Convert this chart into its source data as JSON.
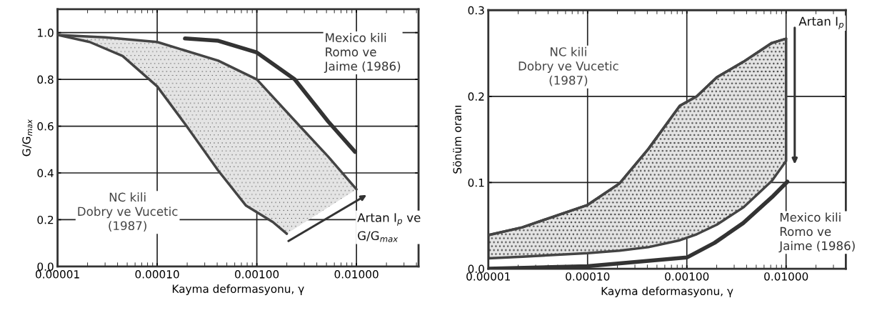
{
  "chart_data": [
    {
      "type": "line",
      "xlabel": "Kayma deformasyonu, γ",
      "ylabel": "G/G$_{max}$",
      "log": "x",
      "grid": true,
      "legend": false,
      "marker": "none",
      "line_style": "solid",
      "xlim": [
        1e-05,
        0.042
      ],
      "ylim": [
        0.0,
        1.1
      ],
      "xticks": [
        {
          "value": 1e-05,
          "label": "0.00001"
        },
        {
          "value": 0.0001,
          "label": "0.00010"
        },
        {
          "value": 0.001,
          "label": "0.00100"
        },
        {
          "value": 0.01,
          "label": "0.01000"
        }
      ],
      "yticks": [
        {
          "value": 0.0,
          "label": "0.0"
        },
        {
          "value": 0.2,
          "label": "0.2"
        },
        {
          "value": 0.4,
          "label": "0.4"
        },
        {
          "value": 0.6,
          "label": "0.6"
        },
        {
          "value": 0.8,
          "label": "0.8"
        },
        {
          "value": 1.0,
          "label": "1.0"
        }
      ],
      "series": [
        {
          "name": "NC kili\nDobry ve Vucetic\n(1987)",
          "color": "#444444",
          "x": [
            1e-05,
            3e-05,
            0.0001,
            0.00041,
            0.001,
            0.0027,
            0.0052,
            0.01
          ],
          "values": [
            0.99,
            0.98,
            0.96,
            0.88,
            0.8,
            0.6,
            0.47,
            0.33
          ]
        },
        {
          "color": "#444444",
          "x": [
            1e-05,
            2.1e-05,
            4.5e-05,
            0.0001,
            0.00019,
            0.00041,
            0.00078,
            0.00145,
            0.002
          ],
          "values": [
            0.99,
            0.96,
            0.9,
            0.77,
            0.61,
            0.41,
            0.26,
            0.19,
            0.14
          ]
        },
        {
          "name": "Mexico kili\nRomo ve\nJaime (1986)",
          "color": "#333333",
          "x": [
            0.00019,
            0.00041,
            0.001,
            0.0024,
            0.0052,
            0.0097
          ],
          "values": [
            0.975,
            0.965,
            0.915,
            0.8,
            0.62,
            0.49
          ]
        }
      ],
      "annotations": [
        "Artan I$_{p}$ ve\nG/G$_{max}$"
      ]
    },
    {
      "type": "line",
      "xlabel": "Kayma deformasyonu, γ",
      "ylabel": "Sönüm oranı",
      "log": "x",
      "grid": true,
      "legend": false,
      "marker": "none",
      "line_style": "solid",
      "xlim": [
        1e-05,
        0.04
      ],
      "ylim": [
        0.0,
        0.3
      ],
      "xticks": [
        {
          "value": 1e-05,
          "label": "0.00001"
        },
        {
          "value": 0.0001,
          "label": "0.00010"
        },
        {
          "value": 0.001,
          "label": "0.00100"
        },
        {
          "value": 0.01,
          "label": "0.01000"
        }
      ],
      "yticks": [
        {
          "value": 0.0,
          "label": "0.0"
        },
        {
          "value": 0.1,
          "label": "0.1"
        },
        {
          "value": 0.2,
          "label": "0.2"
        },
        {
          "value": 0.3,
          "label": "0.3"
        }
      ],
      "series": [
        {
          "name": "NC kili\nDobry ve Vucetic\n(1987)",
          "color": "#444444",
          "x": [
            1e-05,
            2.2e-05,
            0.0001,
            0.00021,
            0.00041,
            0.00085,
            0.00126,
            0.002,
            0.0037,
            0.0072,
            0.01
          ],
          "values": [
            0.039,
            0.048,
            0.074,
            0.099,
            0.139,
            0.189,
            0.2,
            0.222,
            0.24,
            0.262,
            0.267
          ],
          "lower": [
            0.012,
            0.014,
            0.018,
            0.021,
            0.025,
            0.033,
            0.04,
            0.051,
            0.071,
            0.102,
            0.125
          ],
          "upper": [
            0.039,
            0.048,
            0.074,
            0.099,
            0.139,
            0.189,
            0.2,
            0.222,
            0.24,
            0.262,
            0.267
          ]
        },
        {
          "name": "Mexico kili\nRomo ve\nJaime (1986)",
          "color": "#333333",
          "x": [
            1e-05,
            0.0001,
            0.001,
            0.0019,
            0.0037,
            0.0072,
            0.0103
          ],
          "values": [
            0.0,
            0.003,
            0.013,
            0.03,
            0.053,
            0.083,
            0.101
          ]
        }
      ],
      "annotations": [
        "Artan I$_{p}$"
      ]
    }
  ]
}
